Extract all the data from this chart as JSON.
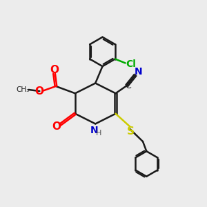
{
  "background_color": "#ececec",
  "bond_color": "#1a1a1a",
  "atom_colors": {
    "O": "#ff0000",
    "N": "#0000cc",
    "S": "#cccc00",
    "Cl": "#00aa00",
    "CN_C": "#1a1a1a",
    "CN_N": "#0000cc"
  },
  "bond_lw": 1.8,
  "xlim": [
    0,
    10
  ],
  "ylim": [
    0,
    10
  ]
}
